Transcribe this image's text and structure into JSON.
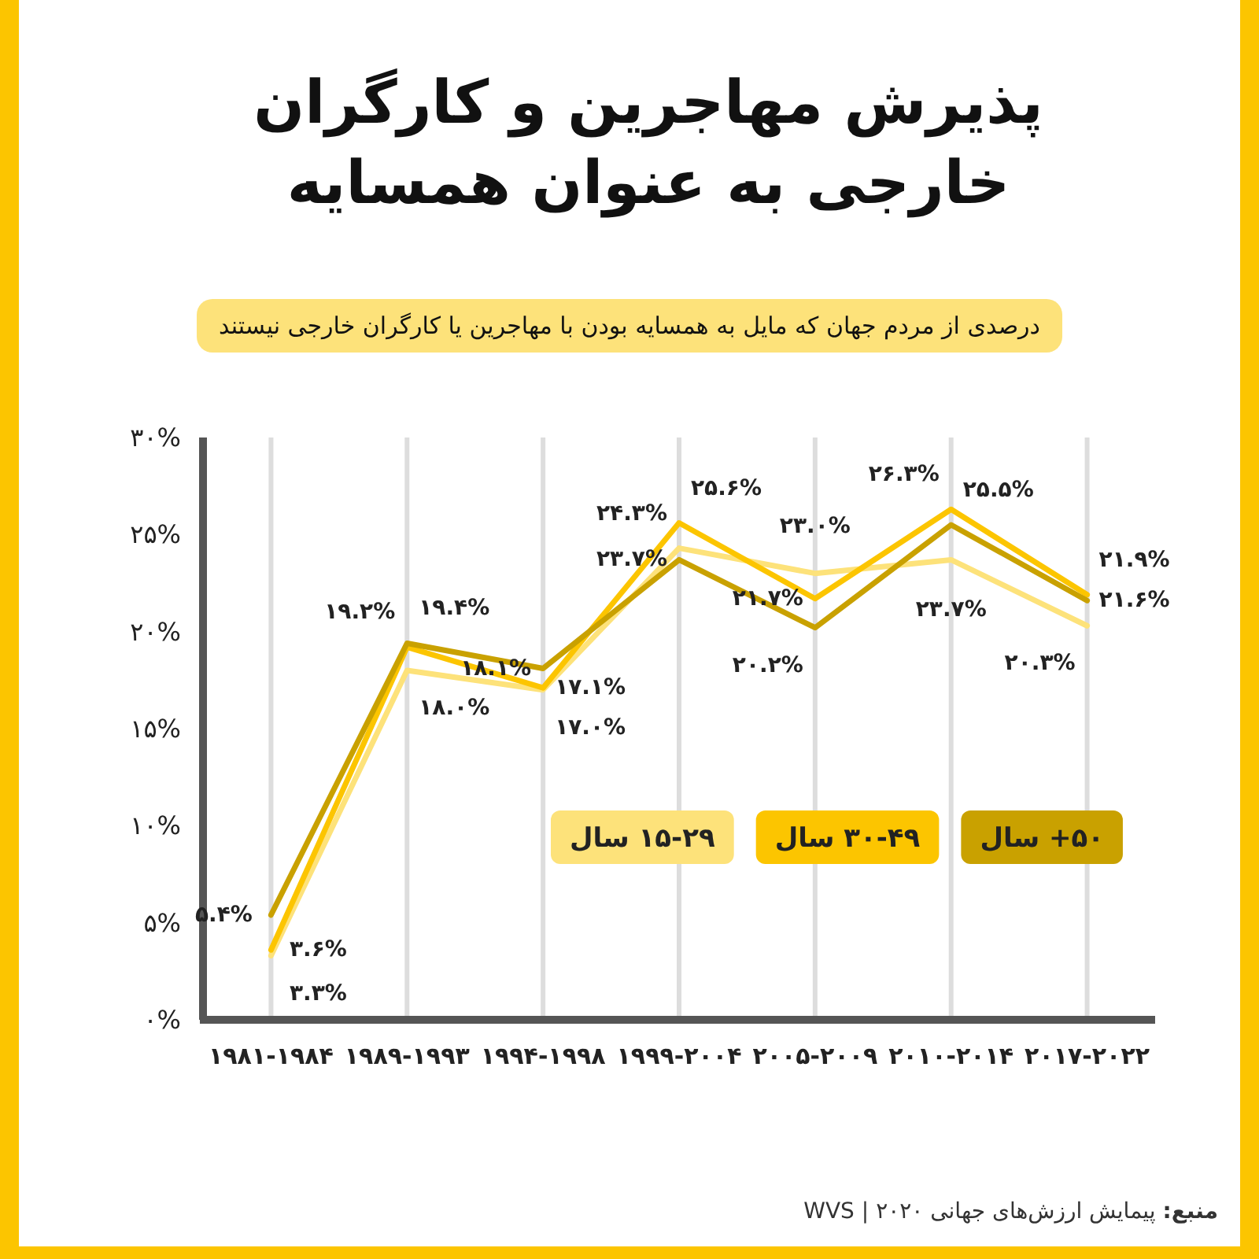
{
  "chart_data": {
    "type": "line",
    "title": "پذیرش مهاجرین و کارگران خارجی به عنوان همسایه",
    "subtitle": "درصدی از مردم جهان که مایل به همسایه بودن با مهاجرین یا کارگران خارجی نیستند",
    "categories": [
      "۱۹۸۱-۱۹۸۴",
      "۱۹۸۹-۱۹۹۳",
      "۱۹۹۴-۱۹۹۸",
      "۱۹۹۹-۲۰۰۴",
      "۲۰۰۵-۲۰۰۹",
      "۲۰۱۰-۲۰۱۴",
      "۲۰۱۷-۲۰۲۲"
    ],
    "series": [
      {
        "name": "۱۵-۲۹ سال",
        "color": "#fde27a",
        "values": [
          3.3,
          18.0,
          17.0,
          24.3,
          23.0,
          23.7,
          20.3
        ],
        "value_labels": [
          "۳.۳%",
          "۱۸.۰%",
          "۱۷.۰%",
          "۲۴.۳%",
          "۲۳.۰%",
          "۲۳.۷%",
          "۲۰.۳%"
        ]
      },
      {
        "name": "۳۰-۴۹ سال",
        "color": "#fcc500",
        "values": [
          3.6,
          19.2,
          17.1,
          25.6,
          21.7,
          26.3,
          21.9
        ],
        "value_labels": [
          "۳.۶%",
          "۱۹.۲%",
          "۱۷.۱%",
          "۲۵.۶%",
          "۲۱.۷%",
          "۲۶.۳%",
          "۲۱.۹%"
        ]
      },
      {
        "name": "۵۰+ سال",
        "color": "#c9a100",
        "values": [
          5.4,
          19.4,
          18.1,
          23.7,
          20.2,
          25.5,
          21.6
        ],
        "value_labels": [
          "۵.۴%",
          "۱۹.۴%",
          "۱۸.۱%",
          "۲۳.۷%",
          "۲۰.۲%",
          "۲۵.۵%",
          "۲۱.۶%"
        ]
      }
    ],
    "ylim": [
      0,
      30
    ],
    "yticks": [
      {
        "value": 0,
        "label": "۰%"
      },
      {
        "value": 5,
        "label": "۵%"
      },
      {
        "value": 10,
        "label": "۱۰%"
      },
      {
        "value": 15,
        "label": "۱۵%"
      },
      {
        "value": 20,
        "label": "۲۰%"
      },
      {
        "value": 25,
        "label": "۲۵%"
      },
      {
        "value": 30,
        "label": "۳۰%"
      }
    ],
    "grid": "x",
    "legend": "right",
    "marker": "none",
    "line_style": "solid",
    "annotations": [
      "منبع: پیمایش ارزش‌های جهانی WVS | ۲۰۲۰"
    ]
  }
}
